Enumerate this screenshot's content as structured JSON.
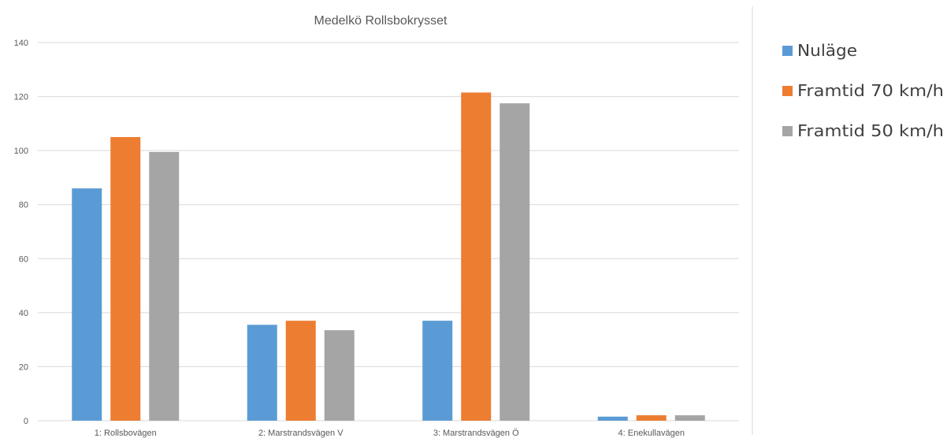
{
  "chart_data": {
    "type": "bar",
    "title": "Medelkö Rollsbokrysset",
    "xlabel": "",
    "ylabel": "",
    "ylim": [
      0,
      140
    ],
    "yticks": [
      0,
      20,
      40,
      60,
      80,
      100,
      120,
      140
    ],
    "grid": true,
    "legend_position": "right",
    "categories": [
      "1: Rollsbovägen",
      "2: Marstrandsvägen V",
      "3: Marstrandsvägen Ö",
      "4: Enekullavägen"
    ],
    "series": [
      {
        "name": "Nuläge",
        "color": "#5b9bd5",
        "values": [
          86,
          35.5,
          37,
          1.5
        ]
      },
      {
        "name": "Framtid 70 km/h",
        "color": "#ed7d31",
        "values": [
          105,
          37,
          121.5,
          2
        ]
      },
      {
        "name": "Framtid 50 km/h",
        "color": "#a5a5a5",
        "values": [
          99.5,
          33.5,
          117.5,
          2
        ]
      }
    ]
  }
}
